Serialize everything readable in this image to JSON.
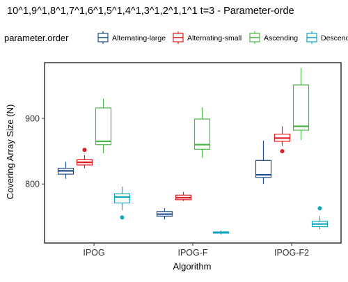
{
  "chart_data": {
    "type": "boxplot",
    "title": "10^1,9^1,8^1,7^1,6^1,5^1,4^1,3^1,2^1,1^1 t=3 - Parameter-orde",
    "xlabel": "Algorithm",
    "ylabel": "Covering Array Size (N)",
    "legend_title": "parameter.order",
    "legend_position": "top",
    "categories": [
      "IPOG",
      "IPOG-F",
      "IPOG-F2"
    ],
    "yticks": [
      800,
      900
    ],
    "ylim": [
      710,
      985
    ],
    "grid": false,
    "series": [
      {
        "name": "Alternating-large",
        "color": "#1f4e8c",
        "boxes": [
          {
            "min": 808,
            "q1": 815,
            "median": 820,
            "q3": 824,
            "max": 834,
            "outliers": []
          },
          {
            "min": 746,
            "q1": 751,
            "median": 754,
            "q3": 758,
            "max": 763,
            "outliers": []
          },
          {
            "min": 800,
            "q1": 810,
            "median": 814,
            "q3": 836,
            "max": 866,
            "outliers": []
          }
        ]
      },
      {
        "name": "Alternating-small",
        "color": "#e31a1c",
        "boxes": [
          {
            "min": 824,
            "q1": 829,
            "median": 833,
            "q3": 837,
            "max": 844,
            "outliers": [
              852
            ]
          },
          {
            "min": 774,
            "q1": 776,
            "median": 779,
            "q3": 783,
            "max": 788,
            "outliers": []
          },
          {
            "min": 858,
            "q1": 865,
            "median": 870,
            "q3": 876,
            "max": 888,
            "outliers": [
              850
            ]
          }
        ]
      },
      {
        "name": "Ascending",
        "color": "#4cb648",
        "boxes": [
          {
            "min": 847,
            "q1": 860,
            "median": 865,
            "q3": 916,
            "max": 930,
            "outliers": []
          },
          {
            "min": 840,
            "q1": 853,
            "median": 860,
            "q3": 899,
            "max": 917,
            "outliers": []
          },
          {
            "min": 867,
            "q1": 882,
            "median": 888,
            "q3": 951,
            "max": 977,
            "outliers": []
          }
        ]
      },
      {
        "name": "Descending",
        "color": "#10a5c0",
        "boxes": [
          {
            "min": 760,
            "q1": 771,
            "median": 780,
            "q3": 785,
            "max": 796,
            "outliers": [
              749
            ]
          },
          {
            "min": 723,
            "q1": 725,
            "median": 726,
            "q3": 727,
            "max": 729,
            "outliers": []
          },
          {
            "min": 731,
            "q1": 735,
            "median": 739,
            "q3": 743,
            "max": 751,
            "outliers": [
              763
            ]
          }
        ]
      }
    ]
  }
}
